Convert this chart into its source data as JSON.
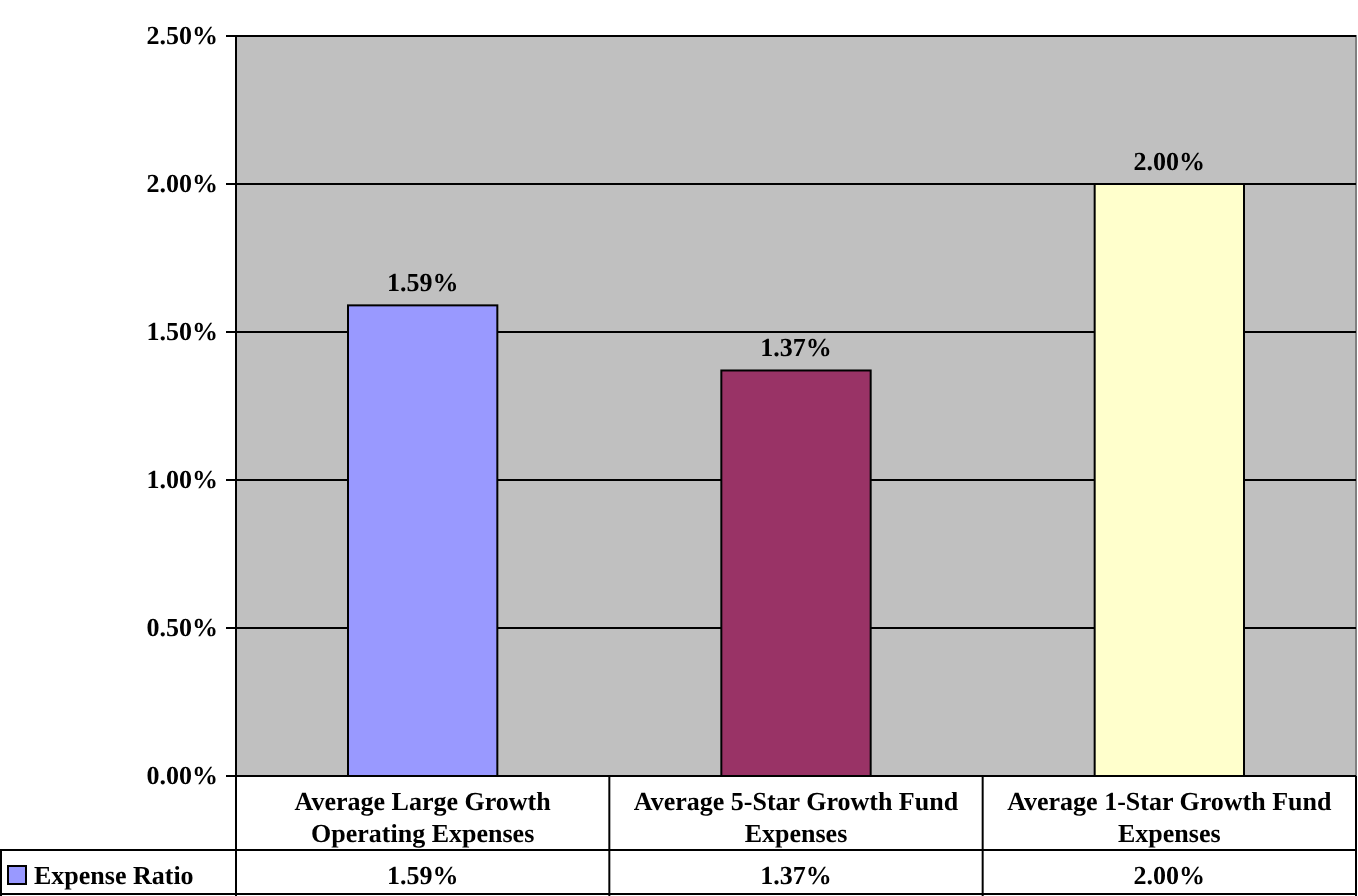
{
  "chart_data": {
    "type": "bar",
    "categories": [
      "Average Large Growth Operating Expenses",
      "Average 5-Star Growth Fund Expenses",
      "Average 1-Star Growth Fund Expenses"
    ],
    "series": [
      {
        "name": "Expense Ratio",
        "color": "#9999ff",
        "colors": [
          "#9999ff",
          "#993366",
          "#ffffcc"
        ],
        "values": [
          1.59,
          1.37,
          2.0
        ],
        "value_labels": [
          "1.59%",
          "1.37%",
          "2.00%"
        ]
      }
    ],
    "ylim": [
      0,
      2.5
    ],
    "yticks": [
      {
        "value": 0,
        "label": "0.00%"
      },
      {
        "value": 0.5,
        "label": "0.50%"
      },
      {
        "value": 1,
        "label": "1.00%"
      },
      {
        "value": 1.5,
        "label": "1.50%"
      },
      {
        "value": 2,
        "label": "2.00%"
      },
      {
        "value": 2.5,
        "label": "2.50%"
      }
    ],
    "grid": "y",
    "legend": "bottom left",
    "data_labels": true
  }
}
